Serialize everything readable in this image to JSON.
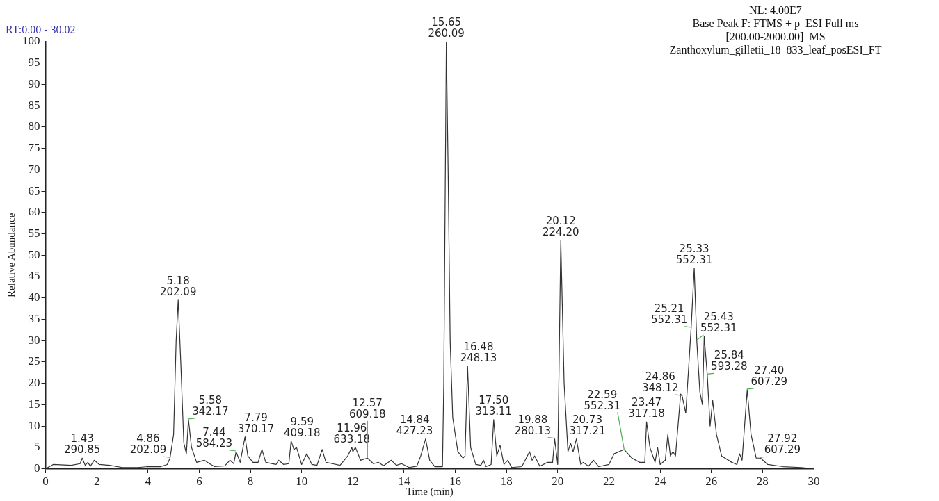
{
  "chart_data": {
    "type": "line",
    "xlabel": "Time (min)",
    "ylabel": "Relative Abundance",
    "xlim": [
      0,
      30
    ],
    "xticks": [
      0,
      2,
      4,
      6,
      8,
      10,
      12,
      14,
      16,
      18,
      20,
      22,
      24,
      26,
      28,
      30
    ],
    "ylim": [
      0,
      100
    ],
    "yticks": [
      0,
      5,
      10,
      15,
      20,
      25,
      30,
      35,
      40,
      45,
      50,
      55,
      60,
      65,
      70,
      75,
      80,
      85,
      90,
      95,
      100
    ],
    "grid": false,
    "legend": false,
    "marker": "none",
    "line_style": "solid",
    "x": [
      0,
      0.3,
      1.0,
      1.35,
      1.43,
      1.55,
      1.65,
      1.75,
      1.9,
      2.1,
      2.5,
      3.0,
      3.6,
      4.0,
      4.5,
      4.75,
      4.86,
      5.0,
      5.1,
      5.18,
      5.28,
      5.4,
      5.5,
      5.58,
      5.7,
      5.9,
      6.2,
      6.4,
      6.6,
      7.0,
      7.2,
      7.35,
      7.44,
      7.6,
      7.79,
      7.9,
      8.1,
      8.3,
      8.45,
      8.6,
      9.0,
      9.1,
      9.3,
      9.5,
      9.59,
      9.7,
      9.8,
      10.0,
      10.2,
      10.4,
      10.6,
      10.8,
      10.95,
      11.2,
      11.5,
      11.8,
      11.96,
      12.0,
      12.1,
      12.3,
      12.57,
      12.8,
      13.0,
      13.2,
      13.5,
      13.7,
      13.9,
      14.2,
      14.5,
      14.65,
      14.84,
      15.0,
      15.2,
      15.5,
      15.55,
      15.65,
      15.72,
      15.8,
      15.9,
      16.1,
      16.3,
      16.38,
      16.48,
      16.6,
      16.8,
      17.0,
      17.1,
      17.2,
      17.4,
      17.5,
      17.62,
      17.75,
      17.9,
      18.05,
      18.2,
      18.6,
      18.9,
      19.0,
      19.1,
      19.3,
      19.6,
      19.7,
      19.8,
      19.88,
      20.0,
      20.12,
      20.25,
      20.4,
      20.5,
      20.6,
      20.73,
      20.9,
      21.0,
      21.2,
      21.4,
      21.6,
      22.0,
      22.2,
      22.59,
      22.9,
      23.2,
      23.4,
      23.47,
      23.6,
      23.8,
      23.9,
      24.0,
      24.2,
      24.3,
      24.4,
      24.5,
      24.6,
      24.8,
      24.86,
      25.0,
      25.21,
      25.33,
      25.43,
      25.55,
      25.65,
      25.72,
      25.84,
      25.95,
      26.05,
      26.2,
      26.4,
      26.8,
      27.0,
      27.1,
      27.2,
      27.4,
      27.55,
      27.75,
      27.92,
      28.2,
      28.8,
      29.5,
      30
    ],
    "series": [
      {
        "color": "#333333",
        "values": [
          0,
          1,
          0.8,
          1.2,
          2.5,
          0.8,
          1.5,
          0.6,
          2,
          1,
          0.8,
          0.3,
          0.3,
          0.5,
          0.5,
          1,
          2.5,
          8,
          30,
          39.5,
          25,
          6,
          3.5,
          11.5,
          5,
          1.5,
          2,
          1.2,
          0.5,
          0.7,
          2,
          1.2,
          4,
          1.5,
          7.5,
          3,
          1.5,
          1.5,
          4.5,
          1.5,
          1,
          2,
          1,
          1.2,
          6.5,
          4.5,
          5,
          1,
          3.5,
          1,
          0.8,
          4.5,
          1.5,
          1.2,
          0.8,
          3,
          5,
          4,
          5,
          2,
          2.5,
          1.2,
          1.5,
          0.7,
          2,
          0.8,
          1.2,
          0.3,
          0.6,
          3,
          7,
          2,
          0.5,
          0.5,
          20,
          100,
          70,
          30,
          12,
          4,
          2.5,
          3,
          24,
          5,
          1,
          0.8,
          2,
          0.5,
          1,
          11.5,
          3,
          5.5,
          1,
          2,
          0.3,
          0.5,
          4,
          2,
          3,
          0.6,
          1.5,
          1.5,
          1.5,
          7,
          1,
          53.5,
          20,
          4,
          6,
          4,
          7,
          1,
          1.5,
          0.6,
          2,
          0.5,
          1,
          3.5,
          4.5,
          2.5,
          1.5,
          1.5,
          11,
          5,
          1.5,
          5,
          1,
          2,
          8,
          3,
          4,
          3,
          17.5,
          17,
          13,
          33,
          47,
          30,
          18,
          15,
          31,
          22,
          10,
          16,
          8,
          3,
          1.5,
          1,
          3.5,
          2,
          18.5,
          8,
          2.5,
          2.5,
          1,
          0.5,
          0.3,
          0
        ]
      }
    ],
    "annotations": [
      "RT:0.00 - 30.02",
      "NL: 4.00E7",
      "Base Peak F: FTMS + p  ESI Full ms",
      "[200.00-2000.00]  MS",
      "Zanthoxylum_gilletii_18  833_leaf_posESI_FT",
      {
        "text": "15.65\n260.09",
        "x": 15.65,
        "y": 100
      },
      {
        "text": "20.12\n224.20",
        "x": 20.12,
        "y": 53.5
      },
      {
        "text": "25.33\n552.31",
        "x": 25.33,
        "y": 47
      },
      {
        "text": "5.18\n202.09",
        "x": 5.18,
        "y": 39.5
      },
      {
        "text": "25.21\n552.31",
        "x": 25.21,
        "y": 33
      },
      {
        "text": "25.43\n552.31",
        "x": 25.43,
        "y": 30
      },
      {
        "text": "16.48\n248.13",
        "x": 16.48,
        "y": 24
      },
      {
        "text": "25.84\n593.28",
        "x": 25.84,
        "y": 22
      },
      {
        "text": "27.40\n607.29",
        "x": 27.4,
        "y": 18.5
      },
      {
        "text": "24.86\n348.12",
        "x": 24.86,
        "y": 17
      },
      {
        "text": "5.58\n342.17",
        "x": 5.58,
        "y": 11.5
      },
      {
        "text": "17.50\n313.11",
        "x": 17.5,
        "y": 11.5
      },
      {
        "text": "23.47\n317.18",
        "x": 23.47,
        "y": 11
      },
      {
        "text": "7.79\n370.17",
        "x": 7.79,
        "y": 7.5
      },
      {
        "text": "19.88\n280.13",
        "x": 19.88,
        "y": 7
      },
      {
        "text": "20.73\n317.21",
        "x": 20.73,
        "y": 7
      },
      {
        "text": "14.84\n427.23",
        "x": 14.84,
        "y": 7
      },
      {
        "text": "9.59\n409.18",
        "x": 9.59,
        "y": 6.5
      },
      {
        "text": "11.96\n633.18",
        "x": 11.96,
        "y": 5
      },
      {
        "text": "22.59\n552.31",
        "x": 22.59,
        "y": 4.5
      },
      {
        "text": "7.44\n584.23",
        "x": 7.44,
        "y": 4
      },
      {
        "text": "4.86\n202.09",
        "x": 4.86,
        "y": 2.5
      },
      {
        "text": "12.57\n609.18",
        "x": 12.57,
        "y": 2.5
      },
      {
        "text": "1.43\n290.85",
        "x": 1.43,
        "y": 2.5
      },
      {
        "text": "27.92\n607.29",
        "x": 27.92,
        "y": 2.5
      }
    ]
  }
}
